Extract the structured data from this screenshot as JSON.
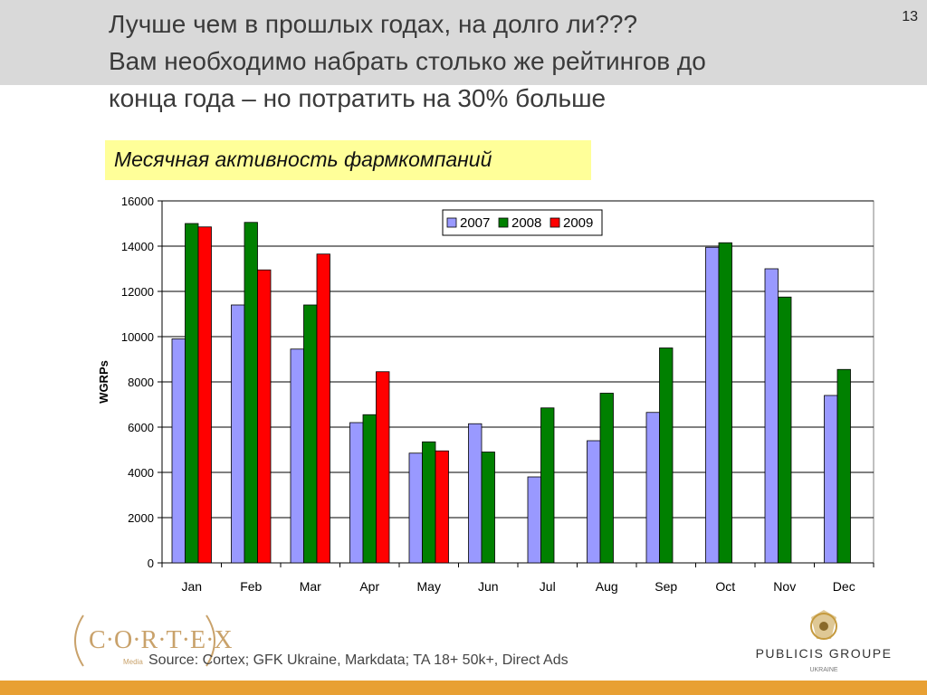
{
  "slide": {
    "number": "13",
    "title_lines": [
      "Лучше чем  в прошлых годах, на долго ли???",
      "Вам необходимо набрать столько же рейтингов до",
      "конца года – но  потратить на 30% больше"
    ],
    "subtitle": "Месячная активность фармкомпаний",
    "source": "Source: Cortex; GFK Ukraine, Markdata; TA 18+ 50k+, Direct Ads"
  },
  "logos": {
    "cortex": {
      "text": "C·O·R·T·E·X",
      "tagline": "Media"
    },
    "publicis": {
      "name": "PUBLICIS GROUPE",
      "region": "UKRAINE"
    }
  },
  "colors": {
    "band": "#d9d9d9",
    "subtitle_bg": "#ffff99",
    "bottom_bar": "#e8a033"
  },
  "chart_data": {
    "type": "bar",
    "title": "",
    "xlabel": "",
    "ylabel": "WGRPs",
    "ylim": [
      0,
      16000
    ],
    "yticks": [
      0,
      2000,
      4000,
      6000,
      8000,
      10000,
      12000,
      14000,
      16000
    ],
    "categories": [
      "Jan",
      "Feb",
      "Mar",
      "Apr",
      "May",
      "Jun",
      "Jul",
      "Aug",
      "Sep",
      "Oct",
      "Nov",
      "Dec"
    ],
    "grid": true,
    "legend_position": "top-right",
    "series": [
      {
        "name": "2007",
        "color": "#9999ff",
        "values": [
          9900,
          11400,
          9450,
          6200,
          4850,
          6150,
          3800,
          5400,
          6650,
          13950,
          13000,
          7400
        ]
      },
      {
        "name": "2008",
        "color": "#008000",
        "values": [
          15000,
          15050,
          11400,
          6550,
          5350,
          4900,
          6850,
          7500,
          9500,
          14150,
          11750,
          8550
        ]
      },
      {
        "name": "2009",
        "color": "#ff0000",
        "values": [
          14850,
          12950,
          13650,
          8450,
          4950,
          null,
          null,
          null,
          null,
          null,
          null,
          null
        ]
      }
    ]
  }
}
